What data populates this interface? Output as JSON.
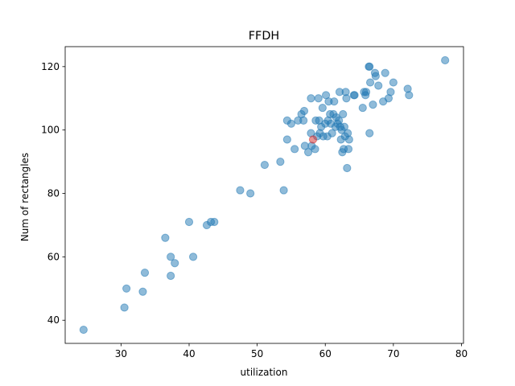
{
  "chart_data": {
    "type": "scatter",
    "title": "FFDH",
    "xlabel": "utilization",
    "ylabel": "Num of rectangles",
    "xlim": [
      21.8,
      80.3
    ],
    "ylim": [
      32.7,
      126.3
    ],
    "xticks": [
      30,
      40,
      50,
      60,
      70,
      80
    ],
    "yticks": [
      40,
      60,
      80,
      100,
      120
    ],
    "grid": false,
    "colors": {
      "main": "#1f77b4",
      "highlight": "#d62728"
    },
    "series": [
      {
        "values": [
          [
            24.5,
            37
          ],
          [
            30.5,
            44
          ],
          [
            30.8,
            50
          ],
          [
            33.2,
            49
          ],
          [
            33.5,
            55
          ],
          [
            36.5,
            66
          ],
          [
            37.3,
            60
          ],
          [
            37.3,
            54
          ],
          [
            37.9,
            58
          ],
          [
            40.0,
            71
          ],
          [
            40.6,
            60
          ],
          [
            42.6,
            70
          ],
          [
            43.2,
            71
          ],
          [
            43.7,
            71
          ],
          [
            47.5,
            81
          ],
          [
            49.0,
            80
          ],
          [
            51.1,
            89
          ],
          [
            53.4,
            90
          ],
          [
            53.9,
            81
          ],
          [
            54.4,
            103
          ],
          [
            54.4,
            97
          ],
          [
            55.0,
            102
          ],
          [
            55.5,
            94
          ],
          [
            56.0,
            103
          ],
          [
            56.5,
            105
          ],
          [
            56.8,
            103
          ],
          [
            56.9,
            106
          ],
          [
            57.0,
            95
          ],
          [
            57.5,
            93
          ],
          [
            57.9,
            110
          ],
          [
            57.9,
            99
          ],
          [
            58.0,
            95
          ],
          [
            58.5,
            94
          ],
          [
            58.6,
            103
          ],
          [
            58.8,
            98
          ],
          [
            59.0,
            110
          ],
          [
            59.1,
            103
          ],
          [
            59.2,
            99
          ],
          [
            59.4,
            101
          ],
          [
            59.6,
            107
          ],
          [
            59.7,
            98
          ],
          [
            60.0,
            102
          ],
          [
            60.1,
            111
          ],
          [
            60.3,
            98
          ],
          [
            60.4,
            103
          ],
          [
            60.5,
            109
          ],
          [
            60.7,
            105
          ],
          [
            60.8,
            102
          ],
          [
            61.0,
            99
          ],
          [
            61.2,
            105
          ],
          [
            61.3,
            109
          ],
          [
            61.5,
            101
          ],
          [
            61.6,
            104
          ],
          [
            61.8,
            102
          ],
          [
            62.0,
            103
          ],
          [
            62.1,
            112
          ],
          [
            62.2,
            101
          ],
          [
            62.3,
            97
          ],
          [
            62.4,
            100
          ],
          [
            62.5,
            93
          ],
          [
            62.6,
            105
          ],
          [
            62.7,
            94
          ],
          [
            62.8,
            101
          ],
          [
            62.9,
            98
          ],
          [
            63.0,
            112
          ],
          [
            63.1,
            110
          ],
          [
            63.2,
            88
          ],
          [
            63.3,
            99
          ],
          [
            63.4,
            94
          ],
          [
            63.5,
            97
          ],
          [
            64.2,
            111
          ],
          [
            64.3,
            111
          ],
          [
            65.5,
            107
          ],
          [
            65.7,
            112
          ],
          [
            65.9,
            111
          ],
          [
            66.0,
            112
          ],
          [
            66.4,
            120
          ],
          [
            66.5,
            120
          ],
          [
            66.5,
            99
          ],
          [
            66.6,
            115
          ],
          [
            67.0,
            108
          ],
          [
            67.3,
            118
          ],
          [
            67.4,
            117
          ],
          [
            67.8,
            114
          ],
          [
            68.5,
            109
          ],
          [
            68.8,
            118
          ],
          [
            69.3,
            110
          ],
          [
            69.6,
            112
          ],
          [
            70.0,
            115
          ],
          [
            72.1,
            113
          ],
          [
            72.3,
            111
          ],
          [
            77.6,
            122
          ]
        ]
      },
      {
        "values": [
          [
            58.2,
            97
          ]
        ]
      }
    ]
  }
}
